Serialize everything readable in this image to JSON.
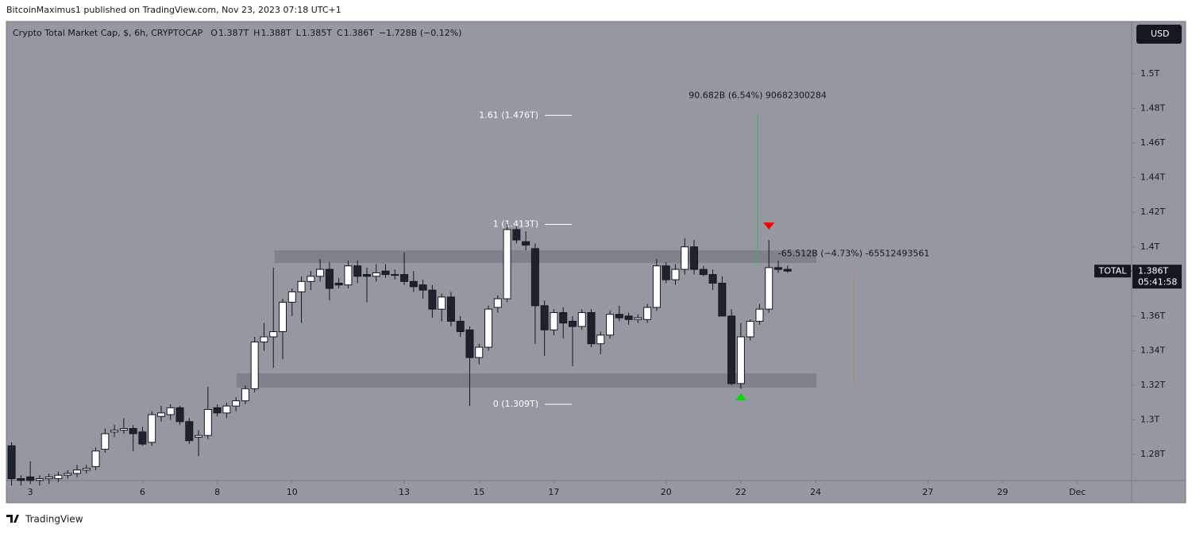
{
  "header": "BitcoinMaximus1 published on TradingView.com, Nov 23, 2023 07:18 UTC+1",
  "footer": "TradingView",
  "chart_data": {
    "type": "candlestick",
    "title": "Crypto Total Market Cap, $, 6h, CRYPTOCAP",
    "ohlc_legend": [
      {
        "key": "O",
        "value": "1.387T"
      },
      {
        "key": "H",
        "value": "1.388T"
      },
      {
        "key": "L",
        "value": "1.385T"
      },
      {
        "key": "C",
        "value": "1.386T"
      }
    ],
    "change": "−1.728B (−0.12%)",
    "currency": "USD",
    "up_color": "#ffffff",
    "down_color": "#1e222d",
    "wick_color": "#131722",
    "x": [
      2.5,
      2.75,
      3,
      3.25,
      3.5,
      3.75,
      4,
      4.25,
      4.5,
      4.75,
      5,
      5.25,
      5.5,
      5.75,
      6,
      6.25,
      6.5,
      6.75,
      7,
      7.25,
      7.5,
      7.75,
      8,
      8.25,
      8.5,
      8.75,
      9,
      9.25,
      9.5,
      9.75,
      10,
      10.25,
      10.5,
      10.75,
      11,
      11.25,
      11.5,
      11.75,
      12,
      12.25,
      12.5,
      12.75,
      13,
      13.25,
      13.5,
      13.75,
      14,
      14.25,
      14.5,
      14.75,
      15,
      15.25,
      15.5,
      15.75,
      16,
      16.25,
      16.5,
      16.75,
      17,
      17.25,
      17.5,
      17.75,
      18,
      18.25,
      18.5,
      18.75,
      19,
      19.25,
      19.5,
      19.75,
      20,
      20.25,
      20.5,
      20.75,
      21,
      21.25,
      21.5,
      21.75,
      22,
      22.25,
      22.5,
      22.75,
      23,
      23.25
    ],
    "open": [
      1.285,
      1.266,
      1.267,
      1.265,
      1.266,
      1.266,
      1.268,
      1.269,
      1.271,
      1.273,
      1.283,
      1.293,
      1.294,
      1.295,
      1.293,
      1.287,
      1.302,
      1.303,
      1.307,
      1.299,
      1.29,
      1.291,
      1.307,
      1.304,
      1.308,
      1.311,
      1.318,
      1.345,
      1.348,
      1.351,
      1.368,
      1.374,
      1.38,
      1.383,
      1.387,
      1.379,
      1.378,
      1.389,
      1.384,
      1.383,
      1.386,
      1.384,
      1.384,
      1.38,
      1.378,
      1.375,
      1.364,
      1.371,
      1.357,
      1.352,
      1.336,
      1.342,
      1.365,
      1.37,
      1.41,
      1.403,
      1.399,
      1.366,
      1.352,
      1.362,
      1.357,
      1.354,
      1.362,
      1.344,
      1.349,
      1.361,
      1.36,
      1.358,
      1.358,
      1.365,
      1.389,
      1.381,
      1.387,
      1.4,
      1.387,
      1.384,
      1.379,
      1.36,
      1.321,
      1.348,
      1.357,
      1.364,
      1.388,
      1.387
    ],
    "high": [
      1.287,
      1.268,
      1.276,
      1.268,
      1.269,
      1.27,
      1.271,
      1.274,
      1.274,
      1.284,
      1.295,
      1.297,
      1.301,
      1.297,
      1.296,
      1.305,
      1.308,
      1.309,
      1.308,
      1.301,
      1.294,
      1.319,
      1.309,
      1.31,
      1.313,
      1.32,
      1.348,
      1.356,
      1.388,
      1.37,
      1.376,
      1.383,
      1.386,
      1.393,
      1.391,
      1.382,
      1.392,
      1.392,
      1.388,
      1.39,
      1.39,
      1.387,
      1.397,
      1.386,
      1.381,
      1.378,
      1.373,
      1.374,
      1.36,
      1.354,
      1.344,
      1.366,
      1.372,
      1.413,
      1.412,
      1.409,
      1.402,
      1.369,
      1.364,
      1.365,
      1.36,
      1.364,
      1.364,
      1.351,
      1.363,
      1.366,
      1.362,
      1.361,
      1.367,
      1.393,
      1.391,
      1.39,
      1.405,
      1.404,
      1.389,
      1.387,
      1.383,
      1.364,
      1.356,
      1.358,
      1.367,
      1.404,
      1.392,
      1.389
    ],
    "low": [
      1.262,
      1.262,
      1.263,
      1.262,
      1.263,
      1.264,
      1.266,
      1.267,
      1.269,
      1.271,
      1.281,
      1.29,
      1.292,
      1.282,
      1.285,
      1.285,
      1.299,
      1.3,
      1.297,
      1.286,
      1.279,
      1.289,
      1.302,
      1.301,
      1.305,
      1.309,
      1.316,
      1.34,
      1.33,
      1.335,
      1.36,
      1.356,
      1.375,
      1.38,
      1.369,
      1.376,
      1.376,
      1.379,
      1.368,
      1.38,
      1.382,
      1.381,
      1.378,
      1.374,
      1.37,
      1.359,
      1.357,
      1.354,
      1.348,
      1.308,
      1.332,
      1.34,
      1.362,
      1.368,
      1.402,
      1.398,
      1.344,
      1.337,
      1.349,
      1.347,
      1.331,
      1.352,
      1.342,
      1.338,
      1.347,
      1.357,
      1.355,
      1.356,
      1.356,
      1.363,
      1.379,
      1.378,
      1.384,
      1.384,
      1.383,
      1.375,
      1.36,
      1.32,
      1.318,
      1.346,
      1.355,
      1.362,
      1.385,
      1.385
    ],
    "close": [
      1.266,
      1.265,
      1.265,
      1.266,
      1.267,
      1.268,
      1.269,
      1.271,
      1.272,
      1.282,
      1.292,
      1.294,
      1.295,
      1.292,
      1.286,
      1.303,
      1.304,
      1.307,
      1.299,
      1.288,
      1.291,
      1.306,
      1.304,
      1.308,
      1.311,
      1.318,
      1.345,
      1.348,
      1.351,
      1.368,
      1.374,
      1.38,
      1.383,
      1.387,
      1.376,
      1.378,
      1.389,
      1.383,
      1.383,
      1.385,
      1.384,
      1.384,
      1.38,
      1.377,
      1.375,
      1.364,
      1.371,
      1.357,
      1.351,
      1.336,
      1.342,
      1.364,
      1.37,
      1.41,
      1.404,
      1.401,
      1.366,
      1.352,
      1.362,
      1.356,
      1.354,
      1.362,
      1.344,
      1.349,
      1.361,
      1.359,
      1.358,
      1.359,
      1.365,
      1.389,
      1.381,
      1.387,
      1.4,
      1.387,
      1.384,
      1.379,
      1.36,
      1.321,
      1.348,
      1.357,
      1.364,
      1.388,
      1.387,
      1.386
    ],
    "xlim": [
      2.36,
      32.45
    ],
    "ylim": [
      1.2649,
      1.5303
    ],
    "xticks": [
      {
        "value": 3,
        "label": "3"
      },
      {
        "value": 6,
        "label": "6"
      },
      {
        "value": 8,
        "label": "8"
      },
      {
        "value": 10,
        "label": "10"
      },
      {
        "value": 13,
        "label": "13"
      },
      {
        "value": 15,
        "label": "15"
      },
      {
        "value": 17,
        "label": "17"
      },
      {
        "value": 20,
        "label": "20"
      },
      {
        "value": 22,
        "label": "22"
      },
      {
        "value": 24,
        "label": "24"
      },
      {
        "value": 27,
        "label": "27"
      },
      {
        "value": 29,
        "label": "29"
      },
      {
        "value": 31,
        "label": "Dec"
      }
    ],
    "yticks": [
      {
        "value": 1.28,
        "label": "1.28T"
      },
      {
        "value": 1.3,
        "label": "1.3T"
      },
      {
        "value": 1.32,
        "label": "1.32T"
      },
      {
        "value": 1.34,
        "label": "1.34T"
      },
      {
        "value": 1.36,
        "label": "1.36T"
      },
      {
        "value": 1.38,
        "label": "1.38T"
      },
      {
        "value": 1.4,
        "label": "1.4T"
      },
      {
        "value": 1.42,
        "label": "1.42T"
      },
      {
        "value": 1.44,
        "label": "1.44T"
      },
      {
        "value": 1.46,
        "label": "1.46T"
      },
      {
        "value": 1.48,
        "label": "1.48T"
      },
      {
        "value": 1.5,
        "label": "1.5T"
      }
    ],
    "last_price": {
      "symbol": "TOTAL",
      "value": 1.386,
      "label": "1.386T",
      "countdown": "05:41:58"
    },
    "zones": [
      {
        "start": 9.53,
        "end": 24.02,
        "from": 1.3907,
        "to": 1.398
      },
      {
        "start": 8.51,
        "end": 24.02,
        "from": 1.3186,
        "to": 1.3269
      }
    ],
    "fib_levels": [
      {
        "label": "1.61 (1.476T)",
        "value": 1.476
      },
      {
        "label": "1 (1.413T)",
        "value": 1.413
      },
      {
        "label": "0 (1.309T)",
        "value": 1.309
      }
    ],
    "markers": [
      {
        "x": 22.75,
        "value": 1.4118,
        "color": "#ff0000",
        "direction": "down"
      },
      {
        "x": 22.0,
        "value": 1.3135,
        "color": "#00e000",
        "direction": "up"
      }
    ],
    "measurements": [
      {
        "x": 22.45,
        "from": 1.3889,
        "to": 1.476,
        "color": "#4caf50",
        "label": "90.682B (6.54%) 90682300284"
      },
      {
        "x": 25.02,
        "from": 1.3197,
        "to": 1.3846,
        "color": "#c77777",
        "label": "-65.512B (−4.73%) -65512493561"
      }
    ]
  }
}
